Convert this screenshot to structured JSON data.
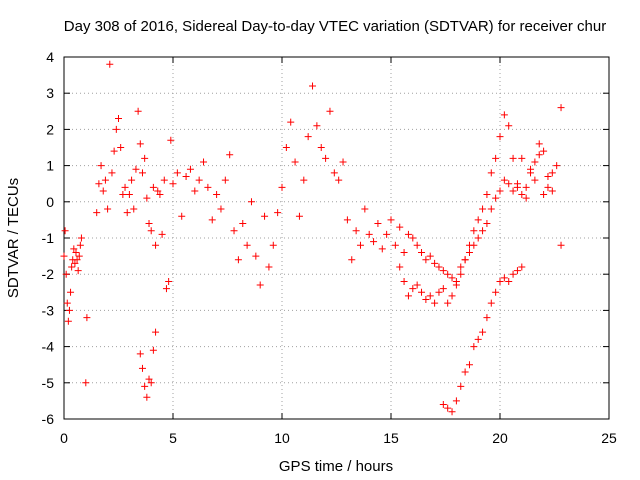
{
  "chart_data": {
    "type": "scatter",
    "title": "Day 308 of 2016, Sidereal Day-to-day VTEC variation (SDTVAR) for receiver chur",
    "xlabel": "GPS time / hours",
    "ylabel": "SDTVAR / TECUs",
    "xlim": [
      0,
      25
    ],
    "ylim": [
      -6,
      4
    ],
    "xticks": [
      0,
      5,
      10,
      15,
      20,
      25
    ],
    "yticks": [
      -6,
      -5,
      -4,
      -3,
      -2,
      -1,
      0,
      1,
      2,
      3,
      4
    ],
    "grid": true,
    "marker": "plus",
    "color": "#ff0000",
    "series": [
      {
        "name": "SDTVAR",
        "x": [
          0.0,
          0.05,
          0.1,
          0.15,
          0.2,
          0.25,
          0.3,
          0.35,
          0.4,
          0.45,
          0.5,
          0.55,
          0.6,
          0.65,
          0.7,
          0.75,
          0.8,
          1.0,
          1.05,
          1.5,
          1.6,
          1.7,
          1.8,
          1.9,
          2.0,
          2.1,
          2.2,
          2.3,
          2.4,
          2.5,
          2.6,
          2.7,
          2.8,
          2.9,
          3.0,
          3.1,
          3.2,
          3.3,
          3.4,
          3.5,
          3.6,
          3.7,
          3.8,
          3.9,
          4.0,
          4.1,
          4.2,
          3.5,
          3.6,
          3.7,
          3.8,
          3.9,
          4.0,
          4.1,
          4.2,
          4.3,
          4.4,
          4.5,
          4.6,
          4.7,
          4.8,
          4.9,
          5.0,
          5.2,
          5.4,
          5.6,
          5.8,
          6.0,
          6.2,
          6.4,
          6.6,
          6.8,
          7.0,
          7.2,
          7.4,
          7.6,
          7.8,
          8.0,
          8.2,
          8.4,
          8.6,
          8.8,
          9.0,
          9.2,
          9.4,
          9.6,
          9.8,
          10.0,
          10.2,
          10.4,
          10.6,
          10.8,
          11.0,
          11.2,
          11.4,
          11.6,
          11.8,
          12.0,
          12.2,
          12.4,
          12.6,
          12.8,
          13.0,
          13.2,
          13.4,
          13.6,
          13.8,
          14.0,
          14.2,
          14.4,
          14.6,
          14.8,
          15.0,
          15.2,
          15.4,
          15.6,
          15.8,
          16.0,
          16.2,
          16.4,
          16.6,
          16.8,
          17.0,
          17.2,
          17.4,
          17.6,
          17.8,
          18.0,
          18.2,
          18.4,
          18.6,
          18.8,
          19.0,
          19.2,
          19.4,
          19.6,
          19.8,
          20.0,
          20.2,
          20.4,
          20.6,
          20.8,
          21.0,
          21.2,
          21.4,
          21.6,
          21.8,
          22.0,
          22.2,
          22.4,
          22.6,
          22.8,
          17.4,
          17.6,
          17.8,
          18.0,
          18.2,
          18.4,
          18.6,
          18.8,
          19.0,
          19.2,
          19.4,
          19.6,
          19.8,
          20.0,
          20.2,
          20.4,
          20.6,
          20.8,
          21.0,
          22.8,
          15.4,
          15.6,
          15.8,
          16.0,
          16.2,
          16.4,
          16.6,
          16.8,
          17.0,
          17.2,
          17.4,
          17.6,
          17.8,
          18.0,
          18.2,
          18.4,
          18.6,
          18.8,
          19.0,
          19.2,
          19.4,
          19.6,
          19.8,
          20.0,
          20.2,
          20.4,
          20.6,
          20.8,
          21.0,
          21.2,
          21.4,
          21.6,
          21.8,
          22.0,
          22.2,
          22.4
        ],
        "y": [
          -1.5,
          -0.8,
          -2.0,
          -2.8,
          -3.3,
          -3.0,
          -2.5,
          -1.8,
          -1.6,
          -1.3,
          -1.7,
          -1.4,
          -1.6,
          -1.9,
          -1.5,
          -1.2,
          -1.0,
          -5.0,
          -3.2,
          -0.3,
          0.5,
          1.0,
          0.3,
          0.6,
          -0.2,
          3.8,
          0.8,
          1.4,
          2.0,
          2.3,
          1.5,
          0.2,
          0.4,
          -0.3,
          0.2,
          0.6,
          -0.2,
          0.9,
          2.5,
          1.6,
          0.8,
          1.2,
          0.1,
          -0.6,
          -0.8,
          0.4,
          -1.2,
          -4.2,
          -4.6,
          -5.1,
          -5.4,
          -4.9,
          -5.0,
          -4.1,
          -3.6,
          0.3,
          0.2,
          -0.9,
          0.6,
          -2.4,
          -2.2,
          1.7,
          0.5,
          0.8,
          -0.4,
          0.7,
          0.9,
          0.3,
          0.6,
          1.1,
          0.4,
          -0.5,
          0.2,
          -0.2,
          0.6,
          1.3,
          -0.8,
          -1.6,
          -0.6,
          -1.2,
          0.0,
          -1.5,
          -2.3,
          -0.4,
          -1.8,
          -1.2,
          -0.3,
          0.4,
          1.5,
          2.2,
          1.1,
          -0.4,
          0.6,
          1.8,
          3.2,
          2.1,
          1.5,
          1.2,
          2.5,
          0.8,
          0.6,
          1.1,
          -0.5,
          -1.6,
          -0.8,
          -1.2,
          -0.2,
          -0.9,
          -1.1,
          -0.6,
          -1.3,
          -0.9,
          -0.5,
          -1.2,
          -0.7,
          -1.4,
          -0.9,
          -1.0,
          -1.2,
          -1.4,
          -1.6,
          -1.5,
          -1.7,
          -1.8,
          -1.9,
          -2.0,
          -2.1,
          -2.3,
          -1.8,
          -1.6,
          -1.4,
          -1.2,
          -1.0,
          -0.8,
          -0.6,
          -0.2,
          0.1,
          0.3,
          0.6,
          0.5,
          0.3,
          0.4,
          1.2,
          0.1,
          0.9,
          0.6,
          1.3,
          0.2,
          0.4,
          0.8,
          1.0,
          2.6,
          -5.6,
          -5.7,
          -5.8,
          -5.5,
          -5.1,
          -4.7,
          -4.5,
          -4.0,
          -3.8,
          -3.6,
          -3.2,
          -2.8,
          -2.5,
          -2.2,
          -2.1,
          -2.2,
          -2.0,
          -1.9,
          -1.8,
          -1.2,
          -1.8,
          -2.2,
          -2.6,
          -2.4,
          -2.3,
          -2.5,
          -2.7,
          -2.6,
          -2.8,
          -2.5,
          -2.4,
          -2.8,
          -2.6,
          -2.2,
          -2.0,
          -1.6,
          -1.2,
          -0.8,
          -0.5,
          -0.2,
          0.2,
          0.8,
          1.2,
          1.8,
          2.4,
          2.1,
          1.2,
          0.5,
          0.2,
          0.4,
          0.8,
          1.1,
          1.6,
          1.4,
          0.7,
          0.3
        ]
      }
    ]
  }
}
